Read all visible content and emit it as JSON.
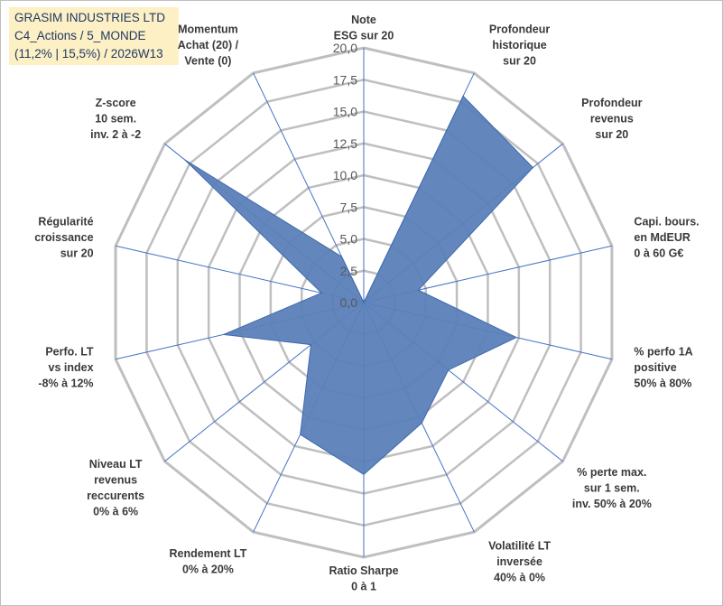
{
  "title_box": {
    "line1": "GRASIM INDUSTRIES LTD",
    "line2": "C4_Actions / 5_MONDE",
    "line3": "(11,2% | 15,5%) / 2026W13"
  },
  "chart_data": {
    "type": "radar",
    "rmin": 0,
    "rmax": 20,
    "tick_step": 2.5,
    "tick_labels": [
      "0,0",
      "2,5",
      "5,0",
      "7,5",
      "10,0",
      "12,5",
      "15,0",
      "17,5",
      "20,0"
    ],
    "axes": [
      {
        "label": [
          "Note",
          "ESG sur 20"
        ],
        "value": 0
      },
      {
        "label": [
          "Profondeur",
          "historique",
          "sur 20"
        ],
        "value": 18
      },
      {
        "label": [
          "Profondeur",
          "revenus",
          "sur 20"
        ],
        "value": 17
      },
      {
        "label": [
          "Capi. bours.",
          "en MdEUR",
          "0 à 60 G€"
        ],
        "value": 4.4
      },
      {
        "label": [
          "% perfo 1A",
          "positive",
          "50% à 80%"
        ],
        "value": 12.3
      },
      {
        "label": [
          "% perte max.",
          "sur 1 sem.",
          "inv. 50% à 20%"
        ],
        "value": 8.5
      },
      {
        "label": [
          "Volatilité LT",
          "inversée",
          "40% à 0%"
        ],
        "value": 10.5
      },
      {
        "label": [
          "Ratio Sharpe",
          "0 à 1"
        ],
        "value": 13.5
      },
      {
        "label": [
          "Rendement LT",
          "0% à 20%"
        ],
        "value": 11.5
      },
      {
        "label": [
          "Niveau LT",
          "revenus",
          "reccurents",
          "0% à 6%"
        ],
        "value": 5.3
      },
      {
        "label": [
          "Perfo. LT",
          "vs index",
          "-8% à 12%"
        ],
        "value": 11.3
      },
      {
        "label": [
          "Régularité",
          "croissance",
          "sur 20"
        ],
        "value": 3.4
      },
      {
        "label": [
          "Z-score",
          "10 sem.",
          "inv. 2 à -2"
        ],
        "value": 18
      },
      {
        "label": [
          "Momentum",
          "Achat (20) /",
          "Vente (0)"
        ],
        "value": 4
      }
    ],
    "colors": {
      "fill": "#5b7fb9",
      "stroke": "#3f6aab",
      "grid": "#bfbfbf",
      "spoke": "#4472c4"
    }
  }
}
